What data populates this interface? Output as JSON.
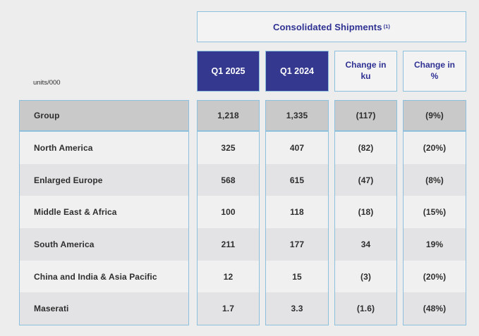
{
  "labels": {
    "units": "units/000"
  },
  "colors": {
    "page_background": "#ededee",
    "border_blue": "#8cc0dc",
    "header_dark_blue": "#34388f",
    "indigo_text": "#2e3192",
    "group_row_grey": "#c9c9ca",
    "row_light": "#f0f0f1",
    "row_shaded": "#e3e3e5",
    "value_text": "#2e2e2e"
  },
  "chart_data": {
    "type": "table",
    "title_main": "Consolidated Shipments",
    "title_footnote": "(1)",
    "unit_note": "units/000",
    "columns": [
      "Q1 2025",
      "Q1 2024",
      "Change in ku",
      "Change in %"
    ],
    "rows": [
      {
        "label": "Group",
        "display": [
          "1,218",
          "1,335",
          "(117)",
          "(9%)"
        ],
        "numeric": {
          "q1_2025": 1218,
          "q1_2024": 1335,
          "change_ku": -117,
          "change_pct": -9
        }
      },
      {
        "label": "North America",
        "display": [
          "325",
          "407",
          "(82)",
          "(20%)"
        ],
        "numeric": {
          "q1_2025": 325,
          "q1_2024": 407,
          "change_ku": -82,
          "change_pct": -20
        }
      },
      {
        "label": "Enlarged Europe",
        "display": [
          "568",
          "615",
          "(47)",
          "(8%)"
        ],
        "numeric": {
          "q1_2025": 568,
          "q1_2024": 615,
          "change_ku": -47,
          "change_pct": -8
        }
      },
      {
        "label": "Middle East & Africa",
        "display": [
          "100",
          "118",
          "(18)",
          "(15%)"
        ],
        "numeric": {
          "q1_2025": 100,
          "q1_2024": 118,
          "change_ku": -18,
          "change_pct": -15
        }
      },
      {
        "label": "South America",
        "display": [
          "211",
          "177",
          "34",
          "19%"
        ],
        "numeric": {
          "q1_2025": 211,
          "q1_2024": 177,
          "change_ku": 34,
          "change_pct": 19
        }
      },
      {
        "label": "China and India & Asia Pacific",
        "display": [
          "12",
          "15",
          "(3)",
          "(20%)"
        ],
        "numeric": {
          "q1_2025": 12,
          "q1_2024": 15,
          "change_ku": -3,
          "change_pct": -20
        }
      },
      {
        "label": "Maserati",
        "display": [
          "1.7",
          "3.3",
          "(1.6)",
          "(48%)"
        ],
        "numeric": {
          "q1_2025": 1.7,
          "q1_2024": 3.3,
          "change_ku": -1.6,
          "change_pct": -48
        }
      }
    ]
  }
}
